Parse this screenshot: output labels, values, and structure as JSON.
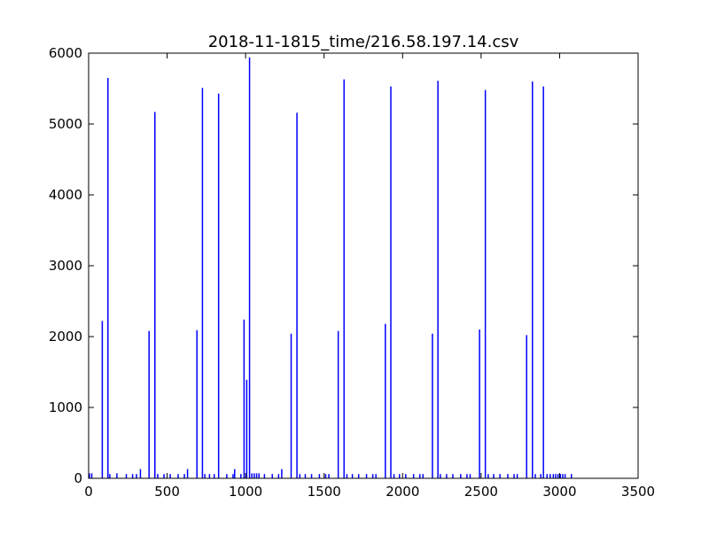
{
  "chart_data": {
    "type": "bar",
    "title": "2018-11-1815_time/216.58.197.14.csv",
    "xlabel": "",
    "ylabel": "",
    "xlim": [
      0,
      3500
    ],
    "ylim": [
      0,
      6000
    ],
    "xticks": [
      0,
      500,
      1000,
      1500,
      2000,
      2500,
      3000,
      3500
    ],
    "yticks": [
      0,
      1000,
      2000,
      3000,
      4000,
      5000,
      6000
    ],
    "grid": false,
    "color": "#0000ff",
    "points": [
      {
        "x": 5,
        "y": 70
      },
      {
        "x": 20,
        "y": 70
      },
      {
        "x": 87,
        "y": 2220
      },
      {
        "x": 123,
        "y": 5650
      },
      {
        "x": 135,
        "y": 60
      },
      {
        "x": 180,
        "y": 70
      },
      {
        "x": 240,
        "y": 60
      },
      {
        "x": 280,
        "y": 60
      },
      {
        "x": 305,
        "y": 60
      },
      {
        "x": 330,
        "y": 130
      },
      {
        "x": 385,
        "y": 2080
      },
      {
        "x": 422,
        "y": 5170
      },
      {
        "x": 440,
        "y": 60
      },
      {
        "x": 480,
        "y": 60
      },
      {
        "x": 520,
        "y": 60
      },
      {
        "x": 570,
        "y": 60
      },
      {
        "x": 610,
        "y": 60
      },
      {
        "x": 630,
        "y": 130
      },
      {
        "x": 690,
        "y": 2090
      },
      {
        "x": 725,
        "y": 5510
      },
      {
        "x": 740,
        "y": 60
      },
      {
        "x": 770,
        "y": 60
      },
      {
        "x": 800,
        "y": 60
      },
      {
        "x": 828,
        "y": 5430
      },
      {
        "x": 880,
        "y": 60
      },
      {
        "x": 920,
        "y": 60
      },
      {
        "x": 930,
        "y": 130
      },
      {
        "x": 970,
        "y": 60
      },
      {
        "x": 990,
        "y": 2240
      },
      {
        "x": 1007,
        "y": 1390
      },
      {
        "x": 1025,
        "y": 5940
      },
      {
        "x": 1040,
        "y": 70
      },
      {
        "x": 1055,
        "y": 70
      },
      {
        "x": 1070,
        "y": 70
      },
      {
        "x": 1085,
        "y": 70
      },
      {
        "x": 1120,
        "y": 60
      },
      {
        "x": 1170,
        "y": 60
      },
      {
        "x": 1210,
        "y": 60
      },
      {
        "x": 1230,
        "y": 130
      },
      {
        "x": 1290,
        "y": 2040
      },
      {
        "x": 1327,
        "y": 5160
      },
      {
        "x": 1345,
        "y": 60
      },
      {
        "x": 1380,
        "y": 60
      },
      {
        "x": 1420,
        "y": 60
      },
      {
        "x": 1470,
        "y": 60
      },
      {
        "x": 1510,
        "y": 60
      },
      {
        "x": 1530,
        "y": 60
      },
      {
        "x": 1590,
        "y": 2080
      },
      {
        "x": 1627,
        "y": 5630
      },
      {
        "x": 1645,
        "y": 60
      },
      {
        "x": 1680,
        "y": 60
      },
      {
        "x": 1720,
        "y": 60
      },
      {
        "x": 1770,
        "y": 60
      },
      {
        "x": 1810,
        "y": 60
      },
      {
        "x": 1830,
        "y": 60
      },
      {
        "x": 1890,
        "y": 2180
      },
      {
        "x": 1925,
        "y": 5530
      },
      {
        "x": 1945,
        "y": 60
      },
      {
        "x": 1980,
        "y": 60
      },
      {
        "x": 2020,
        "y": 60
      },
      {
        "x": 2070,
        "y": 60
      },
      {
        "x": 2110,
        "y": 60
      },
      {
        "x": 2130,
        "y": 60
      },
      {
        "x": 2190,
        "y": 2040
      },
      {
        "x": 2225,
        "y": 5610
      },
      {
        "x": 2240,
        "y": 60
      },
      {
        "x": 2280,
        "y": 60
      },
      {
        "x": 2320,
        "y": 60
      },
      {
        "x": 2370,
        "y": 60
      },
      {
        "x": 2410,
        "y": 60
      },
      {
        "x": 2430,
        "y": 60
      },
      {
        "x": 2490,
        "y": 2100
      },
      {
        "x": 2527,
        "y": 5480
      },
      {
        "x": 2545,
        "y": 60
      },
      {
        "x": 2580,
        "y": 60
      },
      {
        "x": 2620,
        "y": 60
      },
      {
        "x": 2670,
        "y": 60
      },
      {
        "x": 2710,
        "y": 60
      },
      {
        "x": 2730,
        "y": 60
      },
      {
        "x": 2790,
        "y": 2020
      },
      {
        "x": 2827,
        "y": 5600
      },
      {
        "x": 2845,
        "y": 60
      },
      {
        "x": 2880,
        "y": 60
      },
      {
        "x": 2897,
        "y": 5530
      },
      {
        "x": 2920,
        "y": 60
      },
      {
        "x": 2940,
        "y": 60
      },
      {
        "x": 2960,
        "y": 60
      },
      {
        "x": 2975,
        "y": 60
      },
      {
        "x": 2990,
        "y": 60
      },
      {
        "x": 3005,
        "y": 60
      },
      {
        "x": 3020,
        "y": 60
      },
      {
        "x": 3035,
        "y": 60
      },
      {
        "x": 3075,
        "y": 60
      }
    ]
  }
}
